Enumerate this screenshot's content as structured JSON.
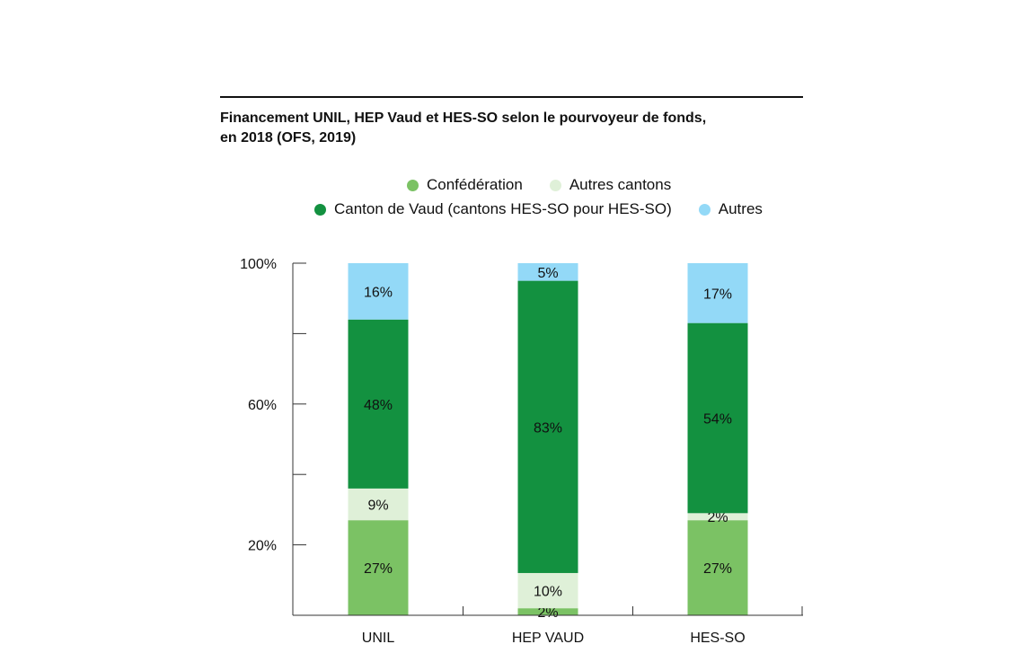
{
  "colors": {
    "confederation": "#7bc264",
    "autres_cantons": "#dff0d8",
    "canton_vaud": "#139140",
    "autres": "#93d9f7",
    "axis": "#333333"
  },
  "chart_data": {
    "type": "bar",
    "stacked": true,
    "title": [
      "Financement UNIL, HEP Vaud et HES-SO selon le pourvoyeur de fonds,",
      "en 2018 (OFS, 2019)"
    ],
    "categories": [
      "UNIL",
      "HEP VAUD",
      "HES-SO"
    ],
    "series": [
      {
        "name": "Confédération",
        "color_key": "confederation",
        "values": [
          27,
          2,
          27
        ],
        "labels": [
          "27%",
          "2%",
          "27%"
        ]
      },
      {
        "name": "Autres cantons",
        "color_key": "autres_cantons",
        "values": [
          9,
          10,
          2
        ],
        "labels": [
          "9%",
          "10%",
          "2%"
        ]
      },
      {
        "name": "Canton de Vaud (cantons HES-SO pour HES-SO)",
        "color_key": "canton_vaud",
        "values": [
          48,
          83,
          54
        ],
        "labels": [
          "48%",
          "83%",
          "54%"
        ]
      },
      {
        "name": "Autres",
        "color_key": "autres",
        "values": [
          16,
          5,
          17
        ],
        "labels": [
          "16%",
          "5%",
          "17%"
        ]
      }
    ],
    "legend_rows": [
      [
        0,
        1
      ],
      [
        2,
        3
      ]
    ],
    "yticks": [
      {
        "value": 20,
        "label": "20%"
      },
      {
        "value": 40,
        "label": ""
      },
      {
        "value": 60,
        "label": "60%"
      },
      {
        "value": 80,
        "label": ""
      },
      {
        "value": 100,
        "label": "100%"
      }
    ],
    "ylim": [
      0,
      100
    ],
    "grid": false,
    "legend_position": "top"
  }
}
